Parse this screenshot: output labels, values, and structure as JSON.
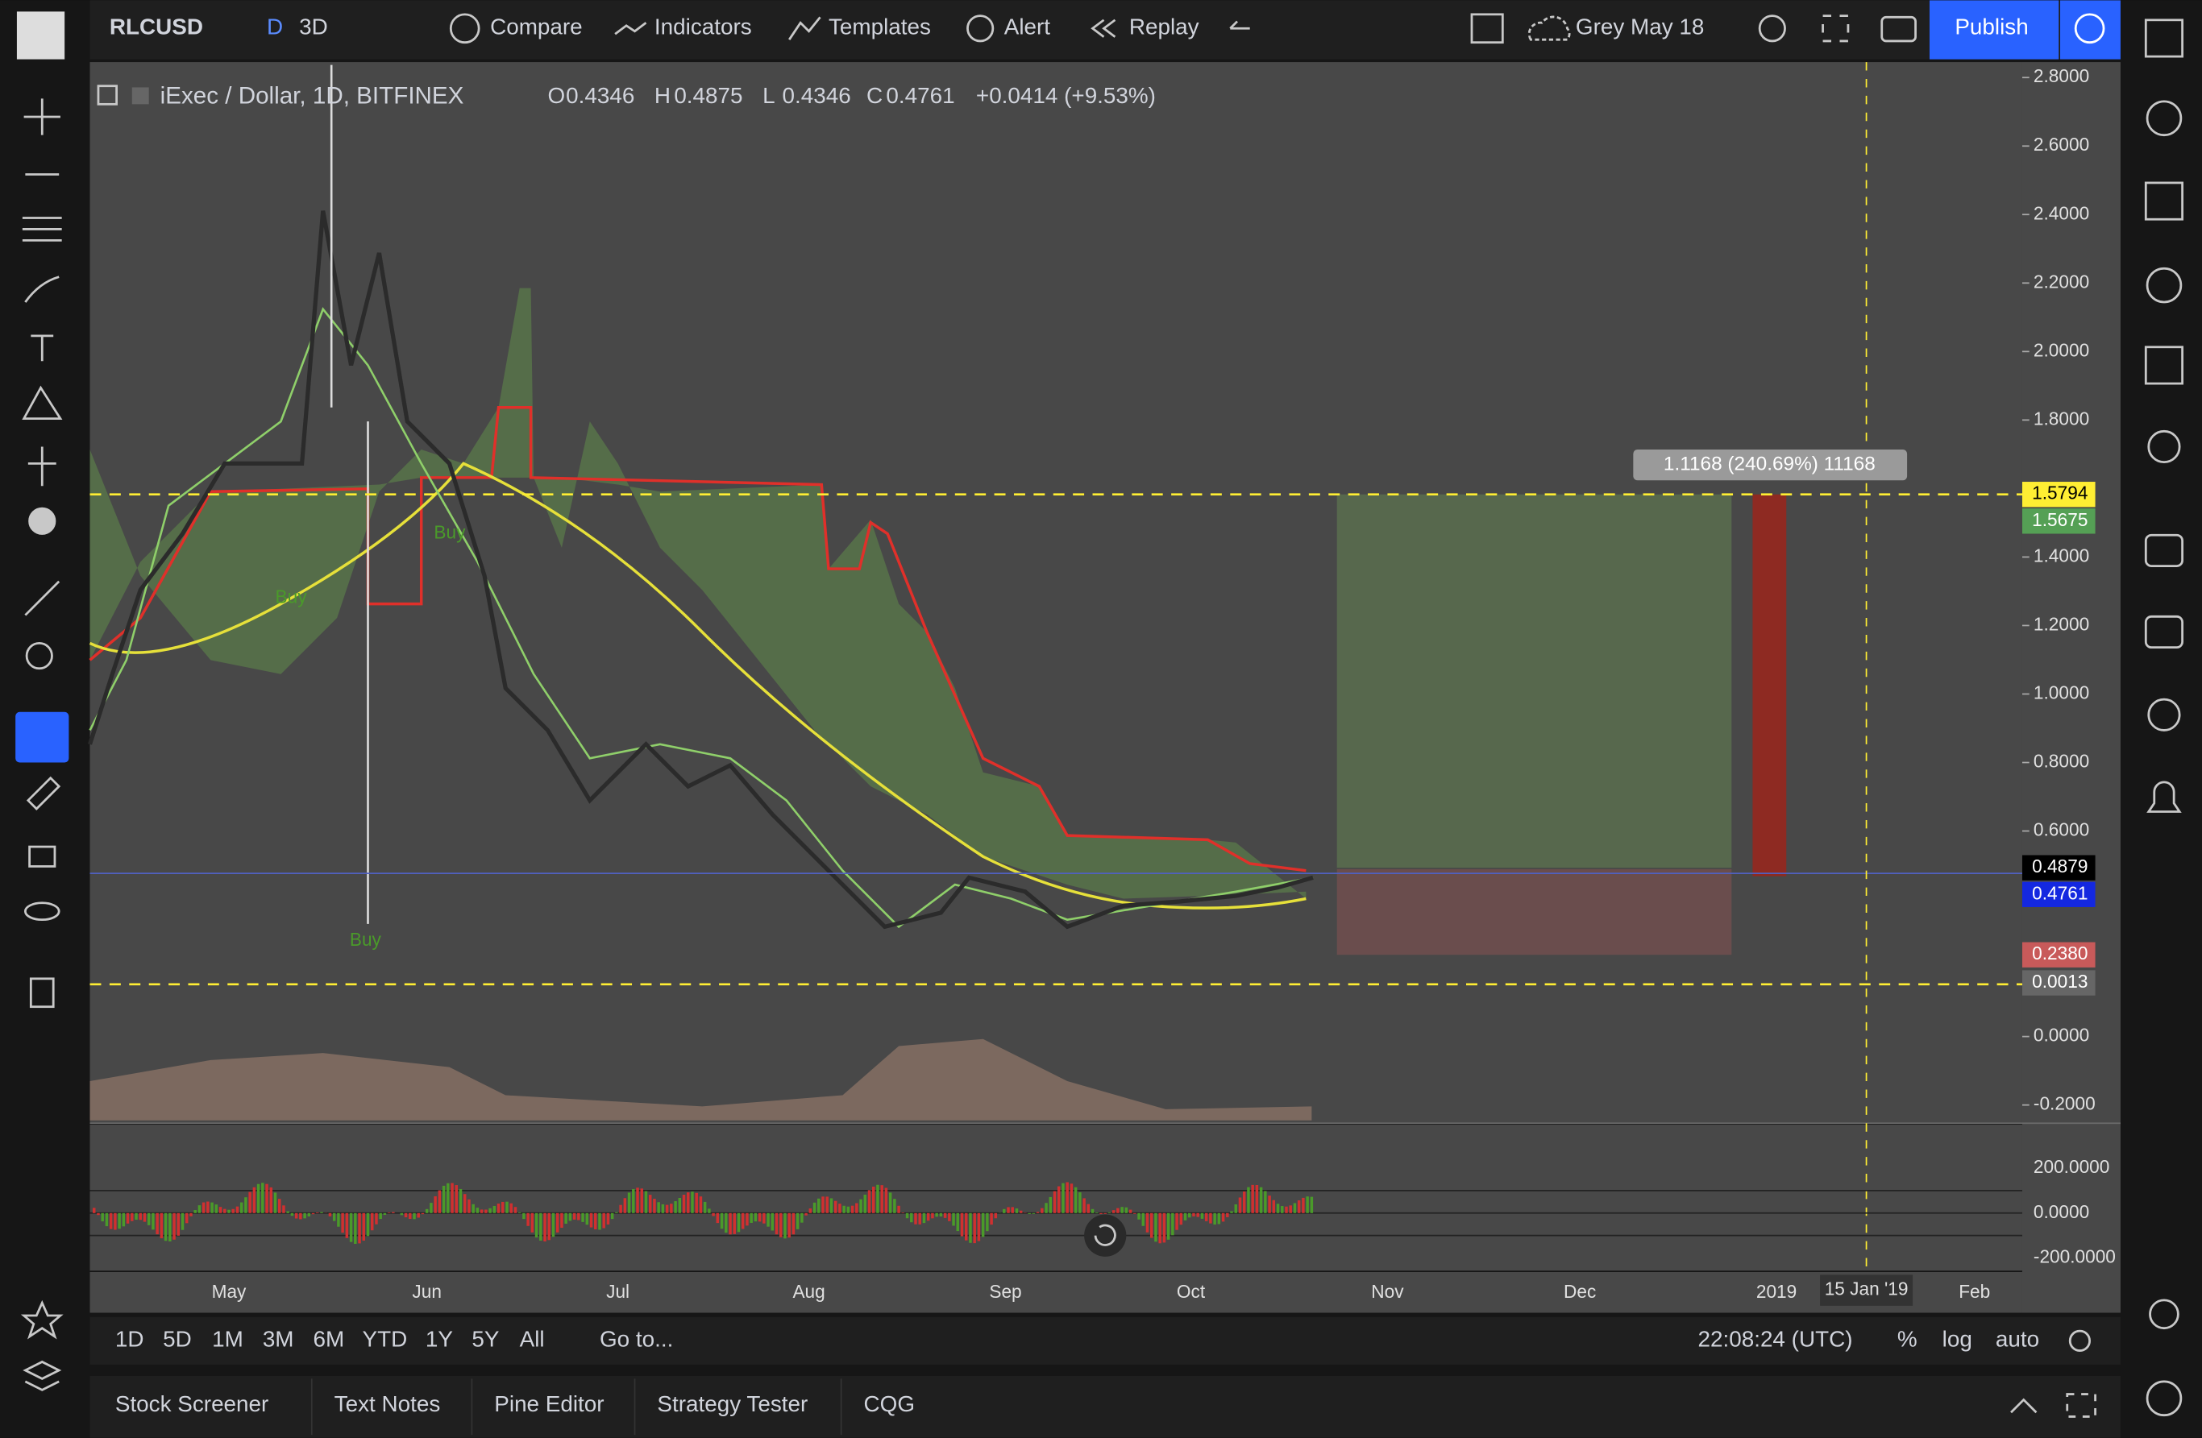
{
  "toolbar": {
    "symbol": "RLCUSD",
    "interval_d": "D",
    "interval_3d": "3D",
    "compare": "Compare",
    "indicators": "Indicators",
    "templates": "Templates",
    "alert": "Alert",
    "replay": "Replay",
    "layout": "Grey May 18",
    "publish": "Publish"
  },
  "legend": {
    "name": "iExec / Dollar, 1D, BITFINEX",
    "o_label": "O",
    "o": "0.4346",
    "h_label": "H",
    "h": "0.4875",
    "l_label": "L",
    "l": "0.4346",
    "c_label": "C",
    "c": "0.4761",
    "change": "+0.0414 (+9.53%)"
  },
  "price_axis": [
    {
      "value": 2.8,
      "label": "2.8000"
    },
    {
      "value": 2.6,
      "label": "2.6000"
    },
    {
      "value": 2.4,
      "label": "2.4000"
    },
    {
      "value": 2.2,
      "label": "2.2000"
    },
    {
      "value": 2,
      "label": "2.0000"
    },
    {
      "value": 1.8,
      "label": "1.8000"
    },
    {
      "value": 1.4,
      "label": "1.4000"
    },
    {
      "value": 1.2,
      "label": "1.2000"
    },
    {
      "value": 1,
      "label": "1.0000"
    },
    {
      "value": 0.8,
      "label": "0.8000"
    },
    {
      "value": 0.6,
      "label": "0.6000"
    },
    {
      "value": 0,
      "label": "0.0000"
    },
    {
      "value": -0.2,
      "label": "-0.2000"
    }
  ],
  "price_tags": [
    "1.5794",
    "1.5675",
    "0.4879",
    "0.4761",
    "0.2380",
    "0.0013"
  ],
  "measure_label": "1.1168 (240.69%) 11168",
  "signals": [
    "Buy",
    "Buy",
    "Buy"
  ],
  "osc_axis": [
    "200.0000",
    "0.0000",
    "-200.0000"
  ],
  "time_axis": [
    "May",
    "Jun",
    "Jul",
    "Aug",
    "Sep",
    "Oct",
    "Nov",
    "Dec",
    "2019",
    "Feb"
  ],
  "crosshair_date": "15 Jan '19",
  "ranges": [
    "1D",
    "5D",
    "1M",
    "3M",
    "6M",
    "YTD",
    "1Y",
    "5Y",
    "All"
  ],
  "goto": "Go to...",
  "clock": "22:08:24 (UTC)",
  "scale_options": [
    "%",
    "log",
    "auto"
  ],
  "bottom_tabs": [
    "Stock Screener",
    "Text Notes",
    "Pine Editor",
    "Strategy Tester",
    "CQG"
  ]
}
